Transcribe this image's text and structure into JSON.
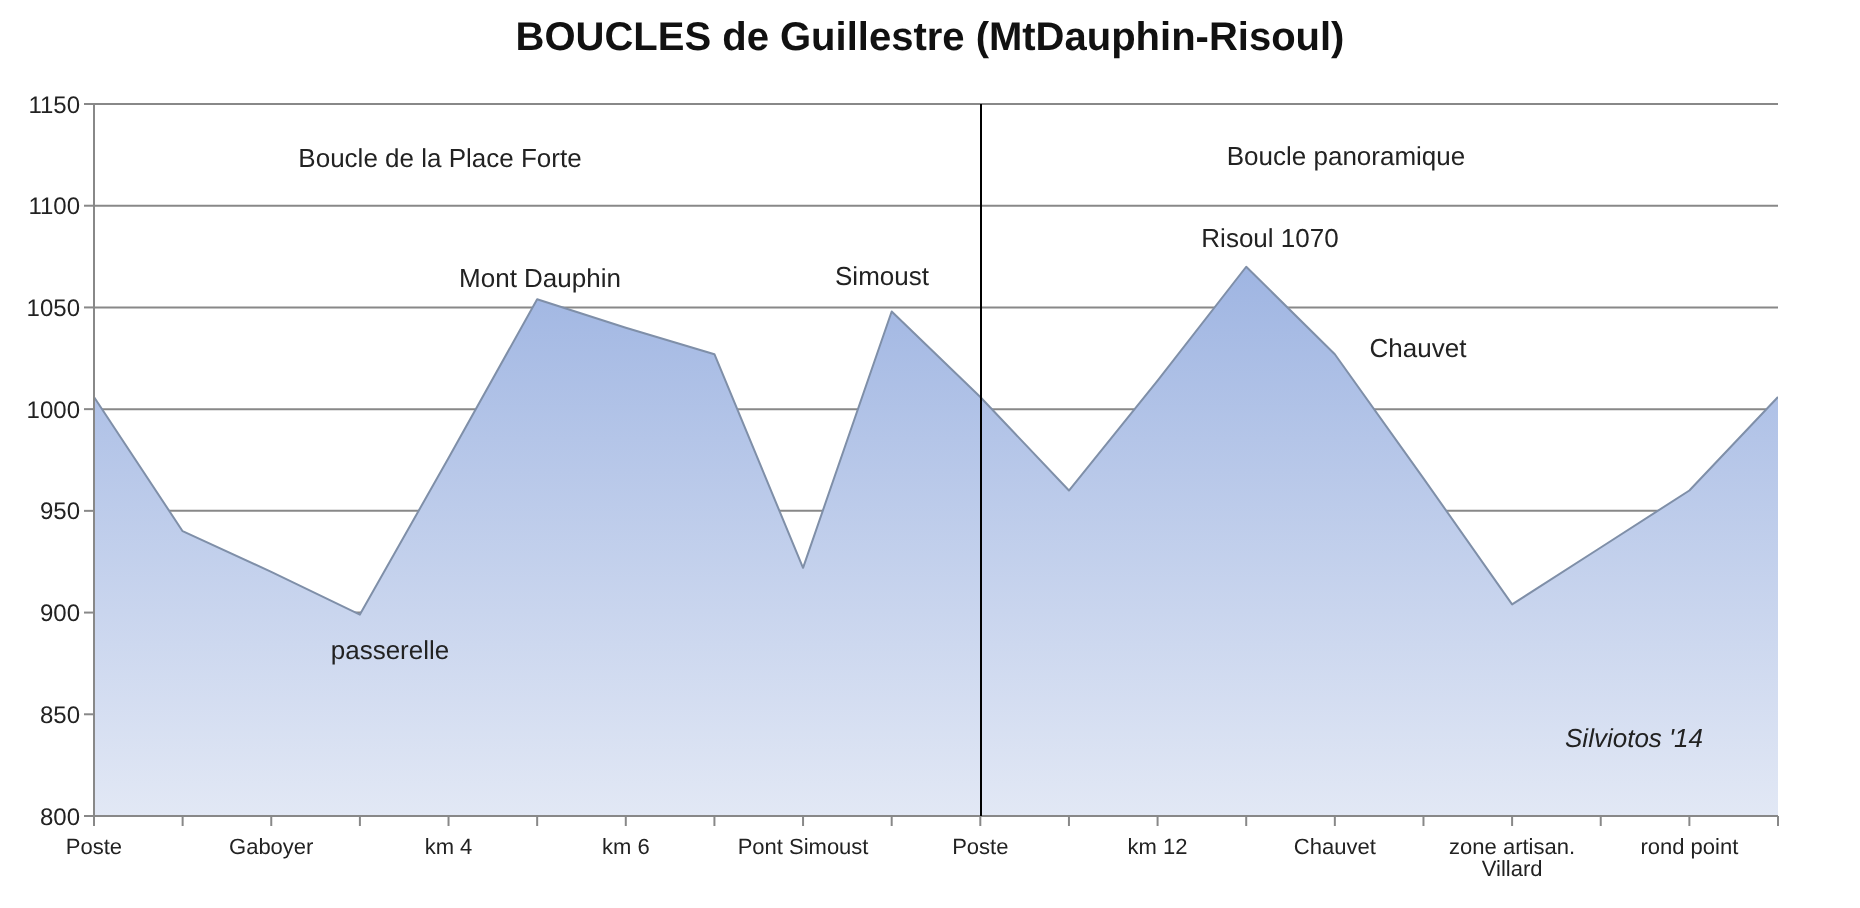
{
  "chart_data": {
    "type": "area",
    "title": "BOUCLES de Guillestre (MtDauphin-Risoul)",
    "categories": [
      "Poste",
      null,
      "Gaboyer",
      null,
      "km 4",
      null,
      "km 6",
      null,
      "Pont Simoust",
      null,
      "Poste",
      null,
      "km 12",
      null,
      "Chauvet",
      null,
      "zone artisan. Villard",
      null,
      "rond point",
      null
    ],
    "values": [
      1006,
      940,
      920,
      899,
      976,
      1054,
      1040,
      1027,
      922,
      1048,
      1006,
      960,
      1014,
      1070,
      1027,
      966,
      904,
      932,
      960,
      1006
    ],
    "color": "#9fb5e2",
    "ylim": [
      800,
      1150
    ],
    "yticks": [
      800,
      850,
      900,
      950,
      1000,
      1050,
      1100,
      1150
    ],
    "grid": "y",
    "annotations": [
      "Boucle de la Place Forte",
      "Boucle panoramique",
      "Mont Dauphin",
      "passerelle",
      "Simoust",
      "Risoul 1070",
      "Chauvet",
      "Silviotos '14"
    ]
  }
}
